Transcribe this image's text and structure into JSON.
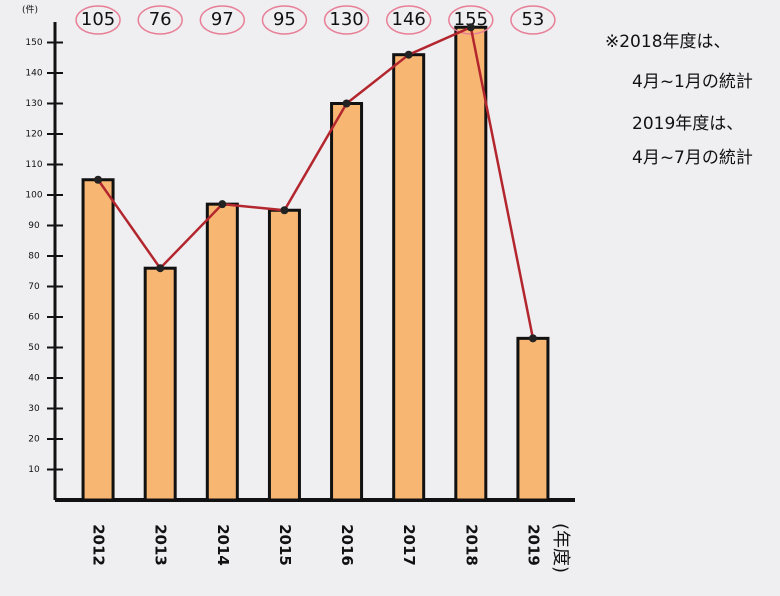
{
  "chart_data": {
    "type": "bar",
    "y_label": "(件)",
    "x_label": "(年度)",
    "categories": [
      "2012",
      "2013",
      "2014",
      "2015",
      "2016",
      "2017",
      "2018",
      "2019"
    ],
    "values": [
      105,
      76,
      97,
      95,
      130,
      146,
      155,
      53
    ],
    "color": "#f7b772",
    "line_color": "#b3262e",
    "label_ring_color": "#e87f96",
    "ylim": [
      0,
      160
    ],
    "yticks": [
      10,
      20,
      30,
      40,
      50,
      60,
      70,
      80,
      90,
      100,
      110,
      120,
      130,
      140,
      150
    ],
    "notes": [
      "※2018年度は、",
      "4月~1月の統計",
      "2019年度は、",
      "4月~7月の統計"
    ]
  }
}
